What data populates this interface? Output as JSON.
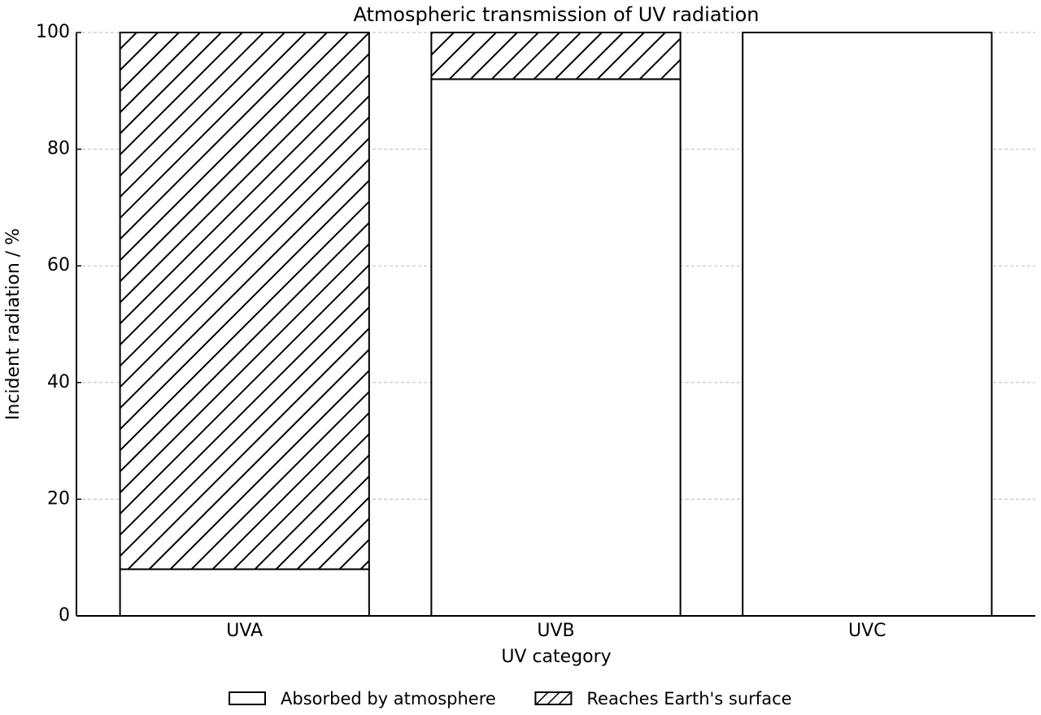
{
  "chart_data": {
    "type": "stacked_bar",
    "title": "Atmospheric transmission of UV radiation",
    "x_label": "UV category",
    "y_label": "Incident radiation / %",
    "categories": [
      "UVA",
      "UVB",
      "UVC"
    ],
    "series": [
      {
        "name": "Absorbed by atmosphere",
        "color": "#ffffff",
        "hatch": "",
        "values": [
          8,
          92,
          100
        ]
      },
      {
        "name": "Reaches Earth's surface",
        "color": "#ffffff",
        "hatch": "/",
        "values": [
          92,
          8,
          0
        ]
      }
    ],
    "ylim": [
      0,
      100
    ],
    "yticks": [
      0,
      20,
      40,
      60,
      80,
      100
    ],
    "grid": true,
    "legend": "bottom"
  }
}
